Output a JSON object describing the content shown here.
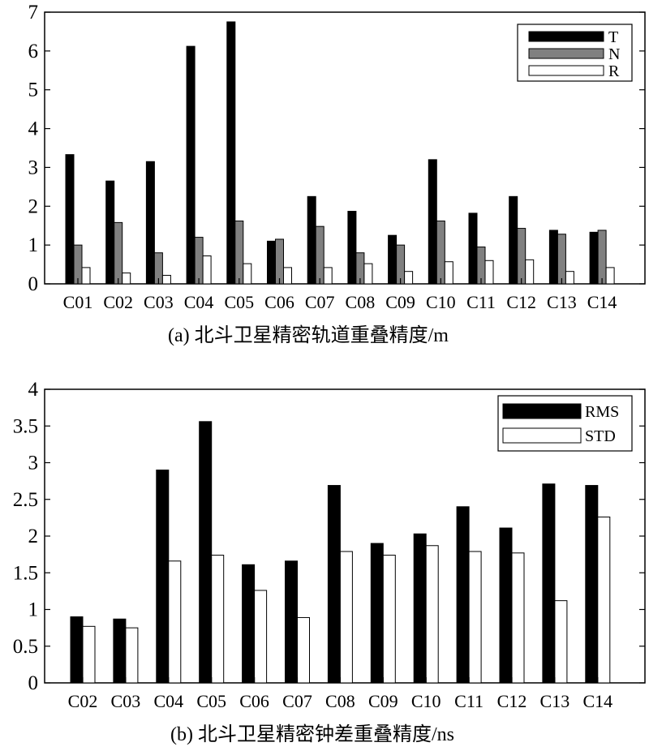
{
  "colors": {
    "T": "#000000",
    "N": "#808080",
    "R": "#ffffff",
    "RMS": "#000000",
    "STD": "#ffffff",
    "axis": "#000000"
  },
  "chart_data": [
    {
      "type": "bar",
      "caption": "(a) 北斗卫星精密轨道重叠精度/m",
      "categories": [
        "C01",
        "C02",
        "C03",
        "C04",
        "C05",
        "C06",
        "C07",
        "C08",
        "C09",
        "C10",
        "C11",
        "C12",
        "C13",
        "C14"
      ],
      "series": [
        {
          "name": "T",
          "values": [
            3.33,
            2.65,
            3.15,
            6.12,
            6.75,
            1.1,
            2.25,
            1.87,
            1.25,
            3.2,
            1.82,
            2.25,
            1.38,
            1.33
          ]
        },
        {
          "name": "N",
          "values": [
            1.0,
            1.58,
            0.8,
            1.2,
            1.62,
            1.15,
            1.48,
            0.8,
            1.0,
            1.62,
            0.95,
            1.43,
            1.28,
            1.38
          ]
        },
        {
          "name": "R",
          "values": [
            0.42,
            0.28,
            0.22,
            0.72,
            0.52,
            0.42,
            0.42,
            0.52,
            0.32,
            0.57,
            0.6,
            0.62,
            0.32,
            0.42
          ]
        }
      ],
      "ylim": [
        0,
        7
      ],
      "yticks": [
        0,
        1,
        2,
        3,
        4,
        5,
        6,
        7
      ],
      "legend_position": "top-right"
    },
    {
      "type": "bar",
      "caption": "(b) 北斗卫星精密钟差重叠精度/ns",
      "categories": [
        "C02",
        "C03",
        "C04",
        "C05",
        "C06",
        "C07",
        "C08",
        "C09",
        "C10",
        "C11",
        "C12",
        "C13",
        "C14"
      ],
      "series": [
        {
          "name": "RMS",
          "values": [
            0.9,
            0.87,
            2.9,
            3.56,
            1.61,
            1.66,
            2.69,
            1.9,
            2.03,
            2.4,
            2.11,
            2.71,
            2.69
          ]
        },
        {
          "name": "STD",
          "values": [
            0.77,
            0.75,
            1.66,
            1.74,
            1.26,
            0.89,
            1.79,
            1.74,
            1.87,
            1.79,
            1.77,
            1.12,
            2.26
          ]
        }
      ],
      "ylim": [
        0,
        4
      ],
      "yticks": [
        0,
        0.5,
        1,
        1.5,
        2,
        2.5,
        3,
        3.5,
        4
      ],
      "legend_position": "top-right"
    }
  ]
}
